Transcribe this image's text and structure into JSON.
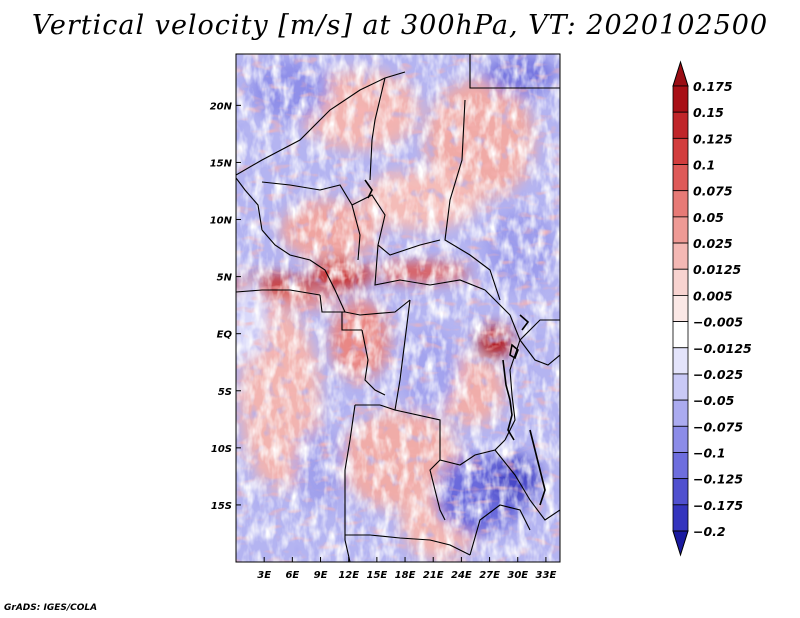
{
  "title": "Vertical velocity [m/s] at 300hPa, VT: 2020102500",
  "credit": "GrADS: IGES/COLA",
  "map": {
    "lon_range": [
      0,
      34.5
    ],
    "lat_range": [
      -20,
      24.5
    ],
    "lon_ticks": [
      {
        "value": 3,
        "label": "3E"
      },
      {
        "value": 6,
        "label": "6E"
      },
      {
        "value": 9,
        "label": "9E"
      },
      {
        "value": 12,
        "label": "12E"
      },
      {
        "value": 15,
        "label": "15E"
      },
      {
        "value": 18,
        "label": "18E"
      },
      {
        "value": 21,
        "label": "21E"
      },
      {
        "value": 24,
        "label": "24E"
      },
      {
        "value": 27,
        "label": "27E"
      },
      {
        "value": 30,
        "label": "30E"
      },
      {
        "value": 33,
        "label": "33E"
      }
    ],
    "lat_ticks": [
      {
        "value": 20,
        "label": "20N"
      },
      {
        "value": 15,
        "label": "15N"
      },
      {
        "value": 10,
        "label": "10N"
      },
      {
        "value": 5,
        "label": "5N"
      },
      {
        "value": 0,
        "label": "EQ"
      },
      {
        "value": -5,
        "label": "5S"
      },
      {
        "value": -10,
        "label": "10S"
      },
      {
        "value": -15,
        "label": "15S"
      }
    ]
  },
  "colorbar": {
    "levels": [
      {
        "label": "0.175",
        "color": "#a80f16"
      },
      {
        "label": "0.15",
        "color": "#c0262a"
      },
      {
        "label": "0.125",
        "color": "#d23d3d"
      },
      {
        "label": "0.1",
        "color": "#de5a58"
      },
      {
        "label": "0.075",
        "color": "#e77a76"
      },
      {
        "label": "0.05",
        "color": "#ee9a95"
      },
      {
        "label": "0.025",
        "color": "#f4b8b4"
      },
      {
        "label": "0.0125",
        "color": "#f8d3d0"
      },
      {
        "label": "0.005",
        "color": "#fbe8e6"
      },
      {
        "label": "−0.005",
        "color": "#ffffff"
      },
      {
        "label": "−0.0125",
        "color": "#e4e4fb"
      },
      {
        "label": "−0.025",
        "color": "#c9c9f6"
      },
      {
        "label": "−0.05",
        "color": "#ababf0"
      },
      {
        "label": "−0.075",
        "color": "#8c8ce8"
      },
      {
        "label": "−0.1",
        "color": "#6e6ede"
      },
      {
        "label": "−0.125",
        "color": "#5050cf"
      },
      {
        "label": "−0.175",
        "color": "#3434bd"
      },
      {
        "label": "−0.2",
        "color": "#2020a8"
      }
    ],
    "top_arrow_color": "#9a0d14",
    "bottom_arrow_color": "#1a1aa0"
  }
}
